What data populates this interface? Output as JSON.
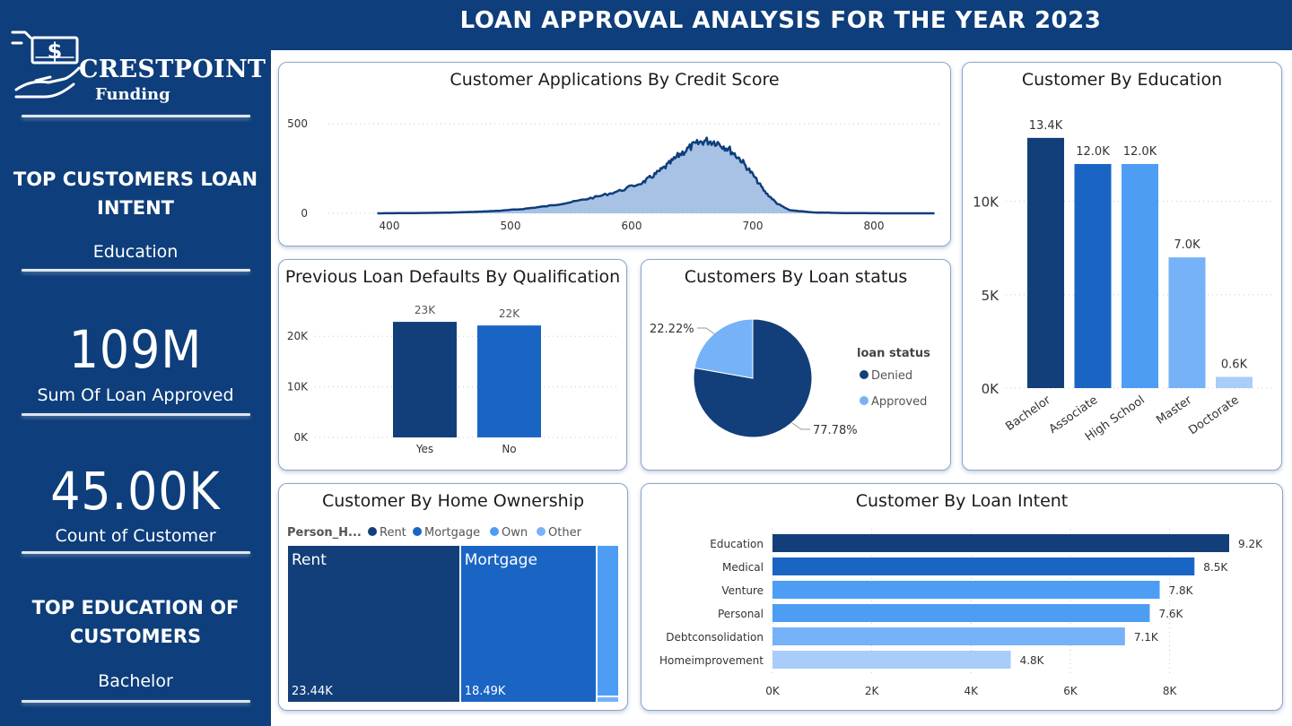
{
  "header": {
    "title": "LOAN APPROVAL ANALYSIS FOR THE YEAR 2023"
  },
  "sidebar": {
    "logo": {
      "name": "CRESTPOINT",
      "sub": "Funding",
      "icon": "money-hand-icon"
    },
    "top_loan_intent": {
      "heading": "TOP CUSTOMERS LOAN INTENT",
      "value": "Education"
    },
    "sum_loan": {
      "value": "109M",
      "label": "Sum Of Loan Approved"
    },
    "count_customer": {
      "value": "45.00K",
      "label": "Count of Customer"
    },
    "top_education": {
      "heading": "TOP EDUCATION OF CUSTOMERS",
      "value": "Bachelor"
    }
  },
  "colors": {
    "navy": "#0e3e7b",
    "dark": "#123f7a",
    "mid": "#1a65c4",
    "light": "#4d9df5",
    "lighter": "#76b2f7",
    "lightest": "#a8cdf8",
    "area_fill": "#a7c2e4"
  },
  "chart_data": [
    {
      "id": "credit-score",
      "type": "area",
      "title": "Customer Applications By Credit Score",
      "x_ticks": [
        "400",
        "500",
        "600",
        "700",
        "800"
      ],
      "y_ticks": [
        "0",
        "500"
      ],
      "xlim": [
        390,
        850
      ],
      "ylim": [
        0,
        500
      ],
      "x": [
        390,
        410,
        430,
        450,
        470,
        490,
        510,
        530,
        550,
        570,
        590,
        610,
        620,
        630,
        640,
        650,
        660,
        670,
        680,
        690,
        700,
        710,
        720,
        730,
        750,
        770,
        790,
        810,
        830,
        850
      ],
      "values": [
        0,
        1,
        2,
        4,
        8,
        14,
        24,
        40,
        62,
        90,
        125,
        175,
        220,
        270,
        330,
        375,
        405,
        398,
        360,
        300,
        215,
        120,
        55,
        18,
        5,
        2,
        1,
        0,
        0,
        0
      ]
    },
    {
      "id": "loan-defaults",
      "type": "bar",
      "title": "Previous Loan Defaults By Qualification",
      "categories": [
        "Yes",
        "No"
      ],
      "values": [
        22858,
        22142
      ],
      "labels": [
        "23K",
        "22K"
      ],
      "y_ticks": [
        "0K",
        "10K",
        "20K"
      ],
      "ylim": [
        0,
        25000
      ]
    },
    {
      "id": "loan-status",
      "type": "pie",
      "title": "Customers By Loan status",
      "legend_title": "loan status",
      "legend_position": "right",
      "categories": [
        "Denied",
        "Approved"
      ],
      "values": [
        77.78,
        22.22
      ],
      "labels": [
        "77.78%",
        "22.22%"
      ]
    },
    {
      "id": "education",
      "type": "bar",
      "title": "Customer By Education",
      "categories": [
        "Bachelor",
        "Associate",
        "High School",
        "Master",
        "Doctorate"
      ],
      "values": [
        13400,
        12000,
        12000,
        7000,
        600
      ],
      "labels": [
        "13.4K",
        "12.0K",
        "12.0K",
        "7.0K",
        "0.6K"
      ],
      "y_ticks": [
        "0K",
        "5K",
        "10K"
      ],
      "ylim": [
        0,
        14400
      ]
    },
    {
      "id": "home-ownership",
      "type": "treemap",
      "title": "Customer By Home Ownership",
      "legend_title": "Person_H...",
      "legend_position": "top-left",
      "categories": [
        "Rent",
        "Mortgage",
        "Own",
        "Other"
      ],
      "values": [
        23440,
        18490,
        2950,
        120
      ],
      "labels": [
        "23.44K",
        "18.49K",
        "",
        ""
      ]
    },
    {
      "id": "loan-intent",
      "type": "bar",
      "orientation": "horizontal",
      "title": "Customer By Loan Intent",
      "categories": [
        "Education",
        "Medical",
        "Venture",
        "Personal",
        "Debtconsolidation",
        "Homeimprovement"
      ],
      "values": [
        9200,
        8500,
        7800,
        7600,
        7100,
        4800
      ],
      "labels": [
        "9.2K",
        "8.5K",
        "7.8K",
        "7.6K",
        "7.1K",
        "4.8K"
      ],
      "x_ticks": [
        "0K",
        "2K",
        "4K",
        "6K",
        "8K"
      ],
      "xlim": [
        0,
        9200
      ]
    }
  ]
}
